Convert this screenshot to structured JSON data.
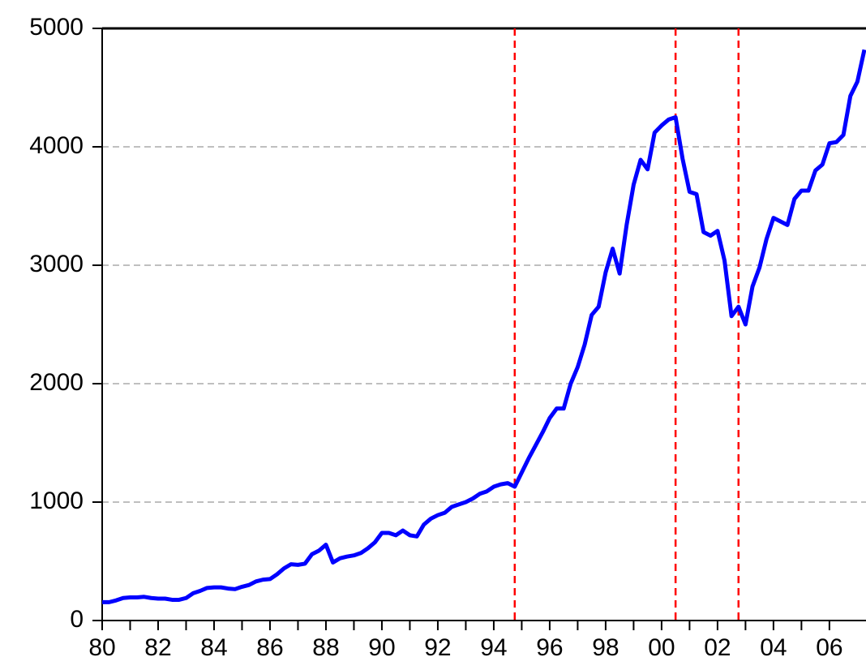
{
  "chart_data": {
    "type": "line",
    "x": [
      1980,
      1980.25,
      1980.5,
      1980.75,
      1981,
      1981.25,
      1981.5,
      1981.75,
      1982,
      1982.25,
      1982.5,
      1982.75,
      1983,
      1983.25,
      1983.5,
      1983.75,
      1984,
      1984.25,
      1984.5,
      1984.75,
      1985,
      1985.25,
      1985.5,
      1985.75,
      1986,
      1986.25,
      1986.5,
      1986.75,
      1987,
      1987.25,
      1987.5,
      1987.75,
      1988,
      1988.25,
      1988.5,
      1988.75,
      1989,
      1989.25,
      1989.5,
      1989.75,
      1990,
      1990.25,
      1990.5,
      1990.75,
      1991,
      1991.25,
      1991.5,
      1991.75,
      1992,
      1992.25,
      1992.5,
      1992.75,
      1993,
      1993.25,
      1993.5,
      1993.75,
      1994,
      1994.25,
      1994.5,
      1994.75,
      1995,
      1995.25,
      1995.5,
      1995.75,
      1996,
      1996.25,
      1996.5,
      1996.75,
      1997,
      1997.25,
      1997.5,
      1997.75,
      1998,
      1998.25,
      1998.5,
      1998.75,
      1999,
      1999.25,
      1999.5,
      1999.75,
      2000,
      2000.25,
      2000.5,
      2000.75,
      2001,
      2001.25,
      2001.5,
      2001.75,
      2002,
      2002.25,
      2002.5,
      2002.75,
      2003,
      2003.25,
      2003.5,
      2003.75,
      2004,
      2004.25,
      2004.5,
      2004.75,
      2005,
      2005.25,
      2005.5,
      2005.75,
      2006,
      2006.25,
      2006.5,
      2006.75,
      2007,
      2007.25
    ],
    "series": [
      {
        "color": "#0000ff",
        "values": [
          155,
          155,
          170,
          190,
          195,
          195,
          200,
          190,
          185,
          185,
          175,
          175,
          190,
          230,
          250,
          275,
          280,
          280,
          270,
          265,
          285,
          300,
          330,
          345,
          350,
          390,
          440,
          475,
          470,
          480,
          560,
          590,
          640,
          490,
          525,
          540,
          550,
          570,
          610,
          660,
          740,
          740,
          720,
          760,
          720,
          710,
          810,
          860,
          890,
          910,
          960,
          980,
          1000,
          1030,
          1070,
          1090,
          1130,
          1150,
          1160,
          1130,
          1250,
          1370,
          1480,
          1590,
          1710,
          1790,
          1790,
          2000,
          2140,
          2330,
          2580,
          2650,
          2940,
          3140,
          2930,
          3340,
          3680,
          3890,
          3810,
          4120,
          4180,
          4230,
          4250,
          3900,
          3620,
          3600,
          3280,
          3250,
          3290,
          3040,
          2570,
          2650,
          2500,
          2820,
          2980,
          3220,
          3400,
          3370,
          3340,
          3560,
          3630,
          3630,
          3800,
          3850,
          4030,
          4040,
          4100,
          4430,
          4550,
          4820
        ]
      }
    ],
    "vlines": [
      1994.75,
      2000.5,
      2002.75
    ],
    "vline_color": "#ff0000",
    "xlim": [
      1980,
      2007.25
    ],
    "xticks": [
      {
        "value": 1980,
        "label": "80"
      },
      {
        "value": 1982,
        "label": "82"
      },
      {
        "value": 1984,
        "label": "84"
      },
      {
        "value": 1986,
        "label": "86"
      },
      {
        "value": 1988,
        "label": "88"
      },
      {
        "value": 1990,
        "label": "90"
      },
      {
        "value": 1992,
        "label": "92"
      },
      {
        "value": 1994,
        "label": "94"
      },
      {
        "value": 1996,
        "label": "96"
      },
      {
        "value": 1998,
        "label": "98"
      },
      {
        "value": 2000,
        "label": "00"
      },
      {
        "value": 2002,
        "label": "02"
      },
      {
        "value": 2004,
        "label": "04"
      },
      {
        "value": 2006,
        "label": "06"
      }
    ],
    "ylim": [
      0,
      5000
    ],
    "yticks": [
      0,
      1000,
      2000,
      3000,
      4000,
      5000
    ],
    "grid": true
  }
}
